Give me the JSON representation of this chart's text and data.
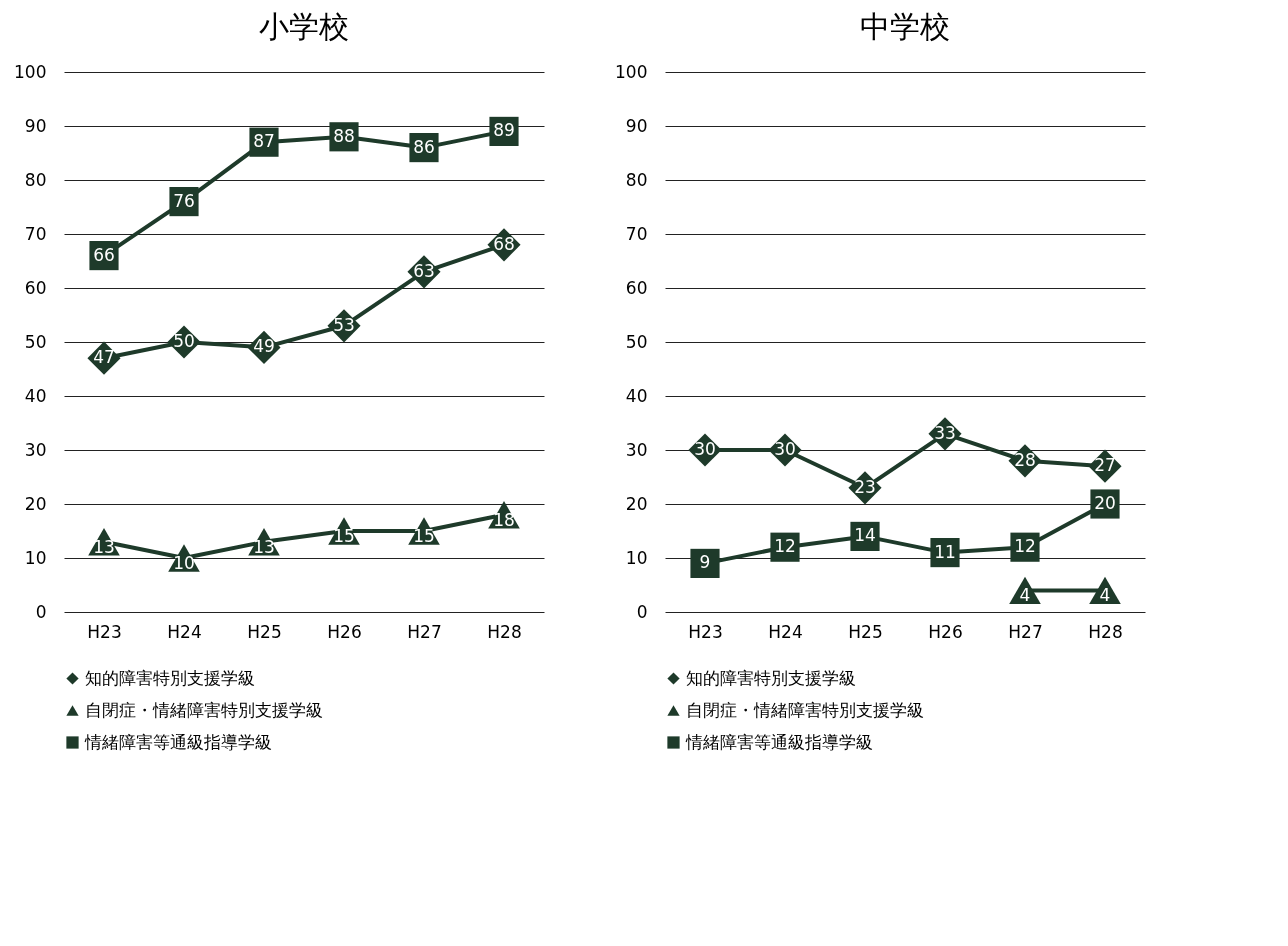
{
  "chart_data": [
    {
      "type": "line",
      "title": "小学校",
      "categories": [
        "H23",
        "H24",
        "H25",
        "H26",
        "H27",
        "H28"
      ],
      "ylim": [
        0,
        100
      ],
      "yticks": [
        0,
        10,
        20,
        30,
        40,
        50,
        60,
        70,
        80,
        90,
        100
      ],
      "grid": "y",
      "legend": "bottom",
      "data_labels": true,
      "series": [
        {
          "name": "知的障害特別支援学級",
          "color": "#1e3a2a",
          "marker": "diamond",
          "values": [
            47,
            50,
            49,
            53,
            63,
            68
          ]
        },
        {
          "name": "自閉症・情緒障害特別支援学級",
          "color": "#1e3a2a",
          "marker": "triangle",
          "values": [
            13,
            10,
            13,
            15,
            15,
            18
          ]
        },
        {
          "name": "情緒障害等通級指導学級",
          "color": "#1e3a2a",
          "marker": "square",
          "values": [
            66,
            76,
            87,
            88,
            86,
            89
          ]
        }
      ]
    },
    {
      "type": "line",
      "title": "中学校",
      "categories": [
        "H23",
        "H24",
        "H25",
        "H26",
        "H27",
        "H28"
      ],
      "ylim": [
        0,
        100
      ],
      "yticks": [
        0,
        10,
        20,
        30,
        40,
        50,
        60,
        70,
        80,
        90,
        100
      ],
      "grid": "y",
      "legend": "bottom",
      "data_labels": true,
      "series": [
        {
          "name": "知的障害特別支援学級",
          "color": "#1e3a2a",
          "marker": "diamond",
          "values": [
            30,
            30,
            23,
            33,
            28,
            27
          ]
        },
        {
          "name": "自閉症・情緒障害特別支援学級",
          "color": "#1e3a2a",
          "marker": "triangle",
          "values": [
            null,
            null,
            null,
            null,
            4,
            4
          ]
        },
        {
          "name": "情緒障害等通級指導学級",
          "color": "#1e3a2a",
          "marker": "square",
          "values": [
            9,
            12,
            14,
            11,
            12,
            20
          ]
        }
      ]
    }
  ]
}
